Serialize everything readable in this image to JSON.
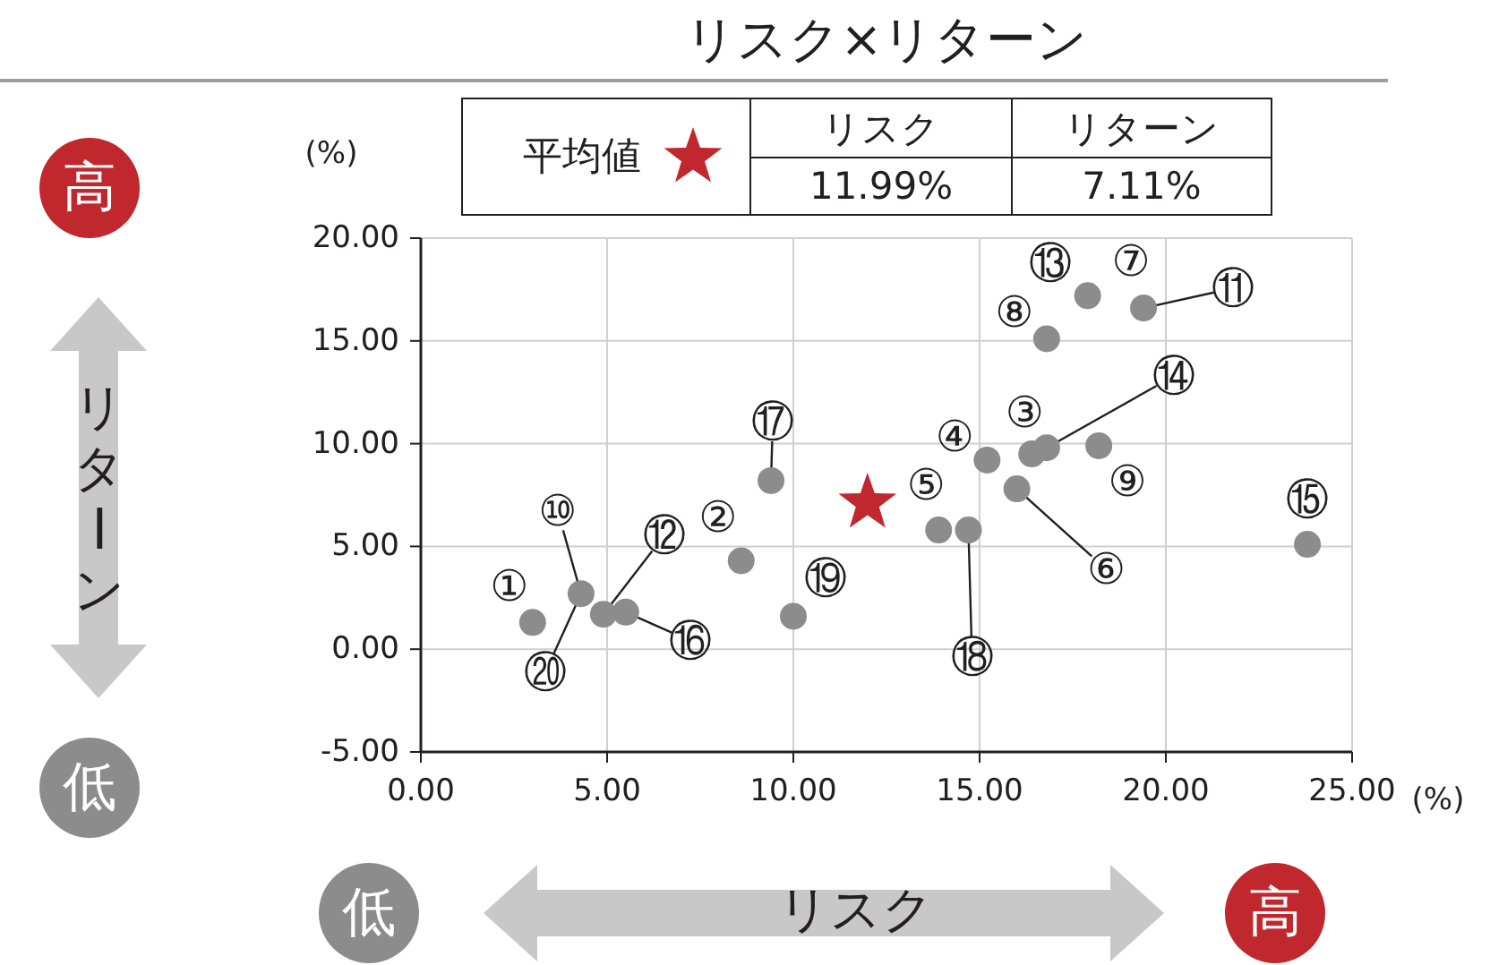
{
  "chart_data": {
    "type": "scatter",
    "title": "リスク×リターン",
    "xlabel": "リスク",
    "ylabel": "リターン",
    "legend": "top",
    "grid": true,
    "xlim": [
      0,
      25
    ],
    "ylim": [
      -5,
      20
    ],
    "xticks": [
      {
        "value": 0,
        "label": "0.00"
      },
      {
        "value": 5,
        "label": "5.00"
      },
      {
        "value": 10,
        "label": "10.00"
      },
      {
        "value": 15,
        "label": "15.00"
      },
      {
        "value": 20,
        "label": "20.00"
      },
      {
        "value": 25,
        "label": "25.00"
      }
    ],
    "yticks": [
      {
        "value": -5,
        "label": "-5.00"
      },
      {
        "value": 0,
        "label": "0.00"
      },
      {
        "value": 5,
        "label": "5.00"
      },
      {
        "value": 10,
        "label": "10.00"
      },
      {
        "value": 15,
        "label": "15.00"
      },
      {
        "value": 20,
        "label": "20.00"
      }
    ],
    "series": [
      {
        "color": "#8c8c8c",
        "marker": "circle",
        "x": [
          3.0,
          8.6,
          16.4,
          15.2,
          13.9,
          16.0,
          19.4,
          16.8,
          18.2,
          4.3,
          17.9,
          4.9,
          16.8,
          23.8,
          5.5,
          9.4,
          14.7,
          10.0
        ],
        "values": [
          1.3,
          4.3,
          9.5,
          9.2,
          5.8,
          7.8,
          16.6,
          15.1,
          9.9,
          2.7,
          17.2,
          1.7,
          9.8,
          5.1,
          1.8,
          8.2,
          5.8,
          1.6
        ]
      },
      {
        "name": "平均値",
        "color": "#c0282d",
        "marker": "star",
        "x": [
          11.99
        ],
        "values": [
          7.11
        ]
      }
    ],
    "annotations": [
      {
        "text": "①",
        "x": 3.0,
        "y": 1.3
      },
      {
        "text": "②",
        "x": 8.6,
        "y": 4.3
      },
      {
        "text": "③",
        "x": 16.4,
        "y": 9.5
      },
      {
        "text": "④",
        "x": 15.2,
        "y": 9.2
      },
      {
        "text": "⑤",
        "x": 13.9,
        "y": 5.8
      },
      {
        "text": "⑥",
        "x": 16.0,
        "y": 7.8
      },
      {
        "text": "⑦",
        "x": 19.4,
        "y": 16.6
      },
      {
        "text": "⑧",
        "x": 16.8,
        "y": 15.1
      },
      {
        "text": "⑨",
        "x": 18.2,
        "y": 9.9
      },
      {
        "text": "⑩",
        "x": 4.3,
        "y": 2.7
      },
      {
        "text": "⑪",
        "x": 19.4,
        "y": 16.6
      },
      {
        "text": "⑫",
        "x": 4.9,
        "y": 1.7
      },
      {
        "text": "⑬",
        "x": 17.9,
        "y": 17.2
      },
      {
        "text": "⑭",
        "x": 16.8,
        "y": 9.8
      },
      {
        "text": "⑮",
        "x": 23.8,
        "y": 5.1
      },
      {
        "text": "⑯",
        "x": 5.5,
        "y": 1.8
      },
      {
        "text": "⑰",
        "x": 9.4,
        "y": 8.2
      },
      {
        "text": "⑱",
        "x": 14.7,
        "y": 5.8
      },
      {
        "text": "⑲",
        "x": 10.0,
        "y": 1.6
      },
      {
        "text": "⑳",
        "x": 4.3,
        "y": 2.7
      },
      "リスク",
      "リターン",
      "11.99%",
      "7.11%",
      "(%)",
      "(%)",
      "高",
      "低",
      "低",
      "高"
    ]
  }
}
